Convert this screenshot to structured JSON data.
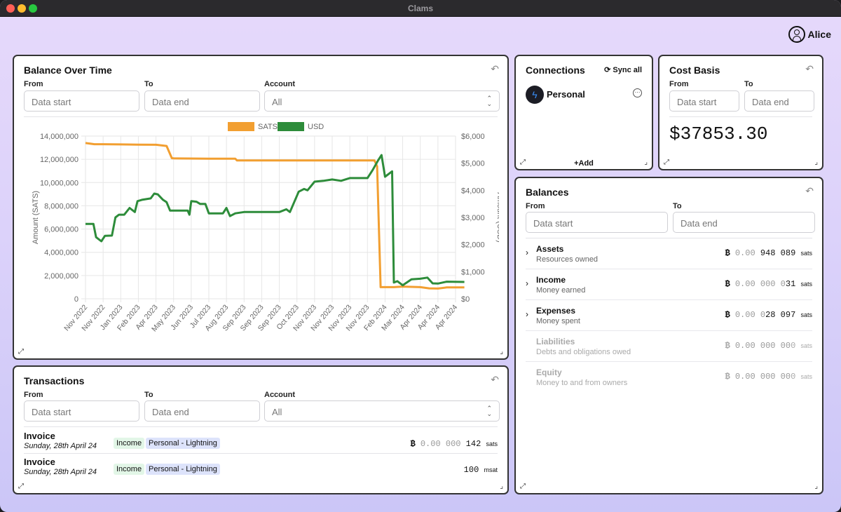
{
  "window": {
    "title": "Clams"
  },
  "user": {
    "name": "Alice"
  },
  "balance_over_time": {
    "title": "Balance Over Time",
    "from_label": "From",
    "from_placeholder": "Data start",
    "to_label": "To",
    "to_placeholder": "Data end",
    "account_label": "Account",
    "account_value": "All"
  },
  "chart_data": {
    "type": "line",
    "legend": [
      {
        "name": "SATS",
        "color": "#f29f31"
      },
      {
        "name": "USD",
        "color": "#2d8c3a"
      }
    ],
    "legend_position": "top",
    "ylabel_left": "Amount (SATS)",
    "ylabel_right": "Amount (USD)",
    "ylim_left": [
      0,
      14000000
    ],
    "ylim_right": [
      0,
      6000
    ],
    "yticks_left": [
      "14,000,000",
      "12,000,000",
      "10,000,000",
      "8,000,000",
      "6,000,000",
      "4,000,000",
      "2,000,000",
      "0"
    ],
    "yticks_right": [
      "$6,000",
      "$5,000",
      "$4,000",
      "$3,000",
      "$2,000",
      "$1,000",
      "$0"
    ],
    "x_labels": [
      "Nov 2022",
      "Nov 2022",
      "Jan 2023",
      "Feb 2023",
      "Apr 2023",
      "May 2023",
      "Jun 2023",
      "Jul 2023",
      "Aug 2023",
      "Sep 2023",
      "Sep 2023",
      "Sep 2023",
      "Oct 2023",
      "Nov 2023",
      "Nov 2023",
      "Nov 2023",
      "Nov 2023",
      "Feb 2024",
      "Mar 2024",
      "Apr 2024",
      "Apr 2024",
      "Apr 2024"
    ],
    "grid": true,
    "series": [
      {
        "name": "SATS",
        "axis": "left",
        "color": "#f29f31",
        "points": [
          [
            0,
            13400000
          ],
          [
            0.5,
            13300000
          ],
          [
            1,
            13300000
          ],
          [
            2,
            13280000
          ],
          [
            3,
            13260000
          ],
          [
            4,
            13250000
          ],
          [
            4.6,
            13150000
          ],
          [
            4.9,
            12100000
          ],
          [
            5,
            12080000
          ],
          [
            7,
            12050000
          ],
          [
            8.5,
            12050000
          ],
          [
            8.6,
            11900000
          ],
          [
            11,
            11900000
          ],
          [
            12,
            11900000
          ],
          [
            14,
            11900000
          ],
          [
            16,
            11900000
          ],
          [
            16.4,
            11900000
          ],
          [
            16.55,
            11400000
          ],
          [
            16.75,
            1000000
          ],
          [
            17,
            1000000
          ],
          [
            17.5,
            1000000
          ],
          [
            18,
            1050000
          ],
          [
            19,
            1000000
          ],
          [
            19.5,
            900000
          ],
          [
            20,
            880000
          ],
          [
            20.5,
            980000
          ],
          [
            21.5,
            980000
          ]
        ]
      },
      {
        "name": "USD",
        "axis": "right",
        "color": "#2d8c3a",
        "points": [
          [
            0,
            2760
          ],
          [
            0.45,
            2760
          ],
          [
            0.6,
            2270
          ],
          [
            0.9,
            2120
          ],
          [
            1.1,
            2320
          ],
          [
            1.5,
            2330
          ],
          [
            1.7,
            3000
          ],
          [
            1.9,
            3100
          ],
          [
            2.2,
            3100
          ],
          [
            2.5,
            3350
          ],
          [
            2.8,
            3200
          ],
          [
            2.95,
            3600
          ],
          [
            3.2,
            3650
          ],
          [
            3.7,
            3700
          ],
          [
            3.9,
            3880
          ],
          [
            4.1,
            3850
          ],
          [
            4.4,
            3650
          ],
          [
            4.6,
            3560
          ],
          [
            4.8,
            3250
          ],
          [
            5.3,
            3250
          ],
          [
            5.8,
            3250
          ],
          [
            5.9,
            3100
          ],
          [
            6.0,
            3600
          ],
          [
            6.3,
            3580
          ],
          [
            6.5,
            3500
          ],
          [
            6.8,
            3500
          ],
          [
            7.0,
            3150
          ],
          [
            7.5,
            3150
          ],
          [
            7.8,
            3150
          ],
          [
            8.0,
            3350
          ],
          [
            8.2,
            3050
          ],
          [
            8.5,
            3150
          ],
          [
            9.0,
            3200
          ],
          [
            9.5,
            3200
          ],
          [
            10.0,
            3200
          ],
          [
            10.3,
            3200
          ],
          [
            11.0,
            3200
          ],
          [
            11.4,
            3300
          ],
          [
            11.6,
            3200
          ],
          [
            11.8,
            3500
          ],
          [
            12.1,
            3950
          ],
          [
            12.4,
            4050
          ],
          [
            12.6,
            4000
          ],
          [
            13.0,
            4320
          ],
          [
            13.5,
            4350
          ],
          [
            14.0,
            4400
          ],
          [
            14.5,
            4350
          ],
          [
            15.0,
            4450
          ],
          [
            15.5,
            4450
          ],
          [
            16.0,
            4450
          ],
          [
            16.3,
            4750
          ],
          [
            16.6,
            5100
          ],
          [
            16.8,
            5300
          ],
          [
            17.0,
            4500
          ],
          [
            17.4,
            4700
          ],
          [
            17.5,
            600
          ],
          [
            17.7,
            650
          ],
          [
            18.0,
            500
          ],
          [
            18.5,
            720
          ],
          [
            19.0,
            740
          ],
          [
            19.4,
            780
          ],
          [
            19.7,
            570
          ],
          [
            20.0,
            560
          ],
          [
            20.5,
            630
          ],
          [
            21.5,
            620
          ]
        ]
      }
    ]
  },
  "transactions": {
    "title": "Transactions",
    "from_label": "From",
    "from_placeholder": "Data start",
    "to_label": "To",
    "to_placeholder": "Data end",
    "account_label": "Account",
    "account_value": "All",
    "rows": [
      {
        "name": "Invoice",
        "date": "Sunday, 28th April 24",
        "type": "Income",
        "account": "Personal - Lightning",
        "btc_symbol": "₿",
        "amount_dim": "0.00 000 ",
        "amount_main": "142",
        "unit": "sats"
      },
      {
        "name": "Invoice",
        "date": "Sunday, 28th April 24",
        "type": "Income",
        "account": "Personal - Lightning",
        "btc_symbol": "",
        "amount_dim": "",
        "amount_main": "100",
        "unit": "msat"
      }
    ]
  },
  "connections": {
    "title": "Connections",
    "sync_label": "Sync all",
    "items": [
      {
        "name": "Personal"
      }
    ],
    "add_label": "Add"
  },
  "cost_basis": {
    "title": "Cost Basis",
    "from_label": "From",
    "from_placeholder": "Data start",
    "to_label": "To",
    "to_placeholder": "Data end",
    "value": "$37853.30"
  },
  "balances": {
    "title": "Balances",
    "from_label": "From",
    "from_placeholder": "Data start",
    "to_label": "To",
    "to_placeholder": "Data end",
    "rows": [
      {
        "name": "Assets",
        "sub": "Resources owned",
        "btc_symbol": "₿",
        "dim": "0.00 ",
        "main": "948 089",
        "unit": "sats"
      },
      {
        "name": "Income",
        "sub": "Money earned",
        "btc_symbol": "₿",
        "dim": "0.00 000 0",
        "main": "31",
        "unit": "sats"
      },
      {
        "name": "Expenses",
        "sub": "Money spent",
        "btc_symbol": "₿",
        "dim": "0.00 0",
        "main": "28 097",
        "unit": "sats"
      },
      {
        "name": "Liabilities",
        "sub": "Debts and obligations owed",
        "btc_symbol": "₿",
        "dim": "0.00 000 00",
        "main": "0",
        "unit": "sats"
      },
      {
        "name": "Equity",
        "sub": "Money to and from owners",
        "btc_symbol": "₿",
        "dim": "0.00 000 00",
        "main": "0",
        "unit": "sats"
      }
    ]
  }
}
